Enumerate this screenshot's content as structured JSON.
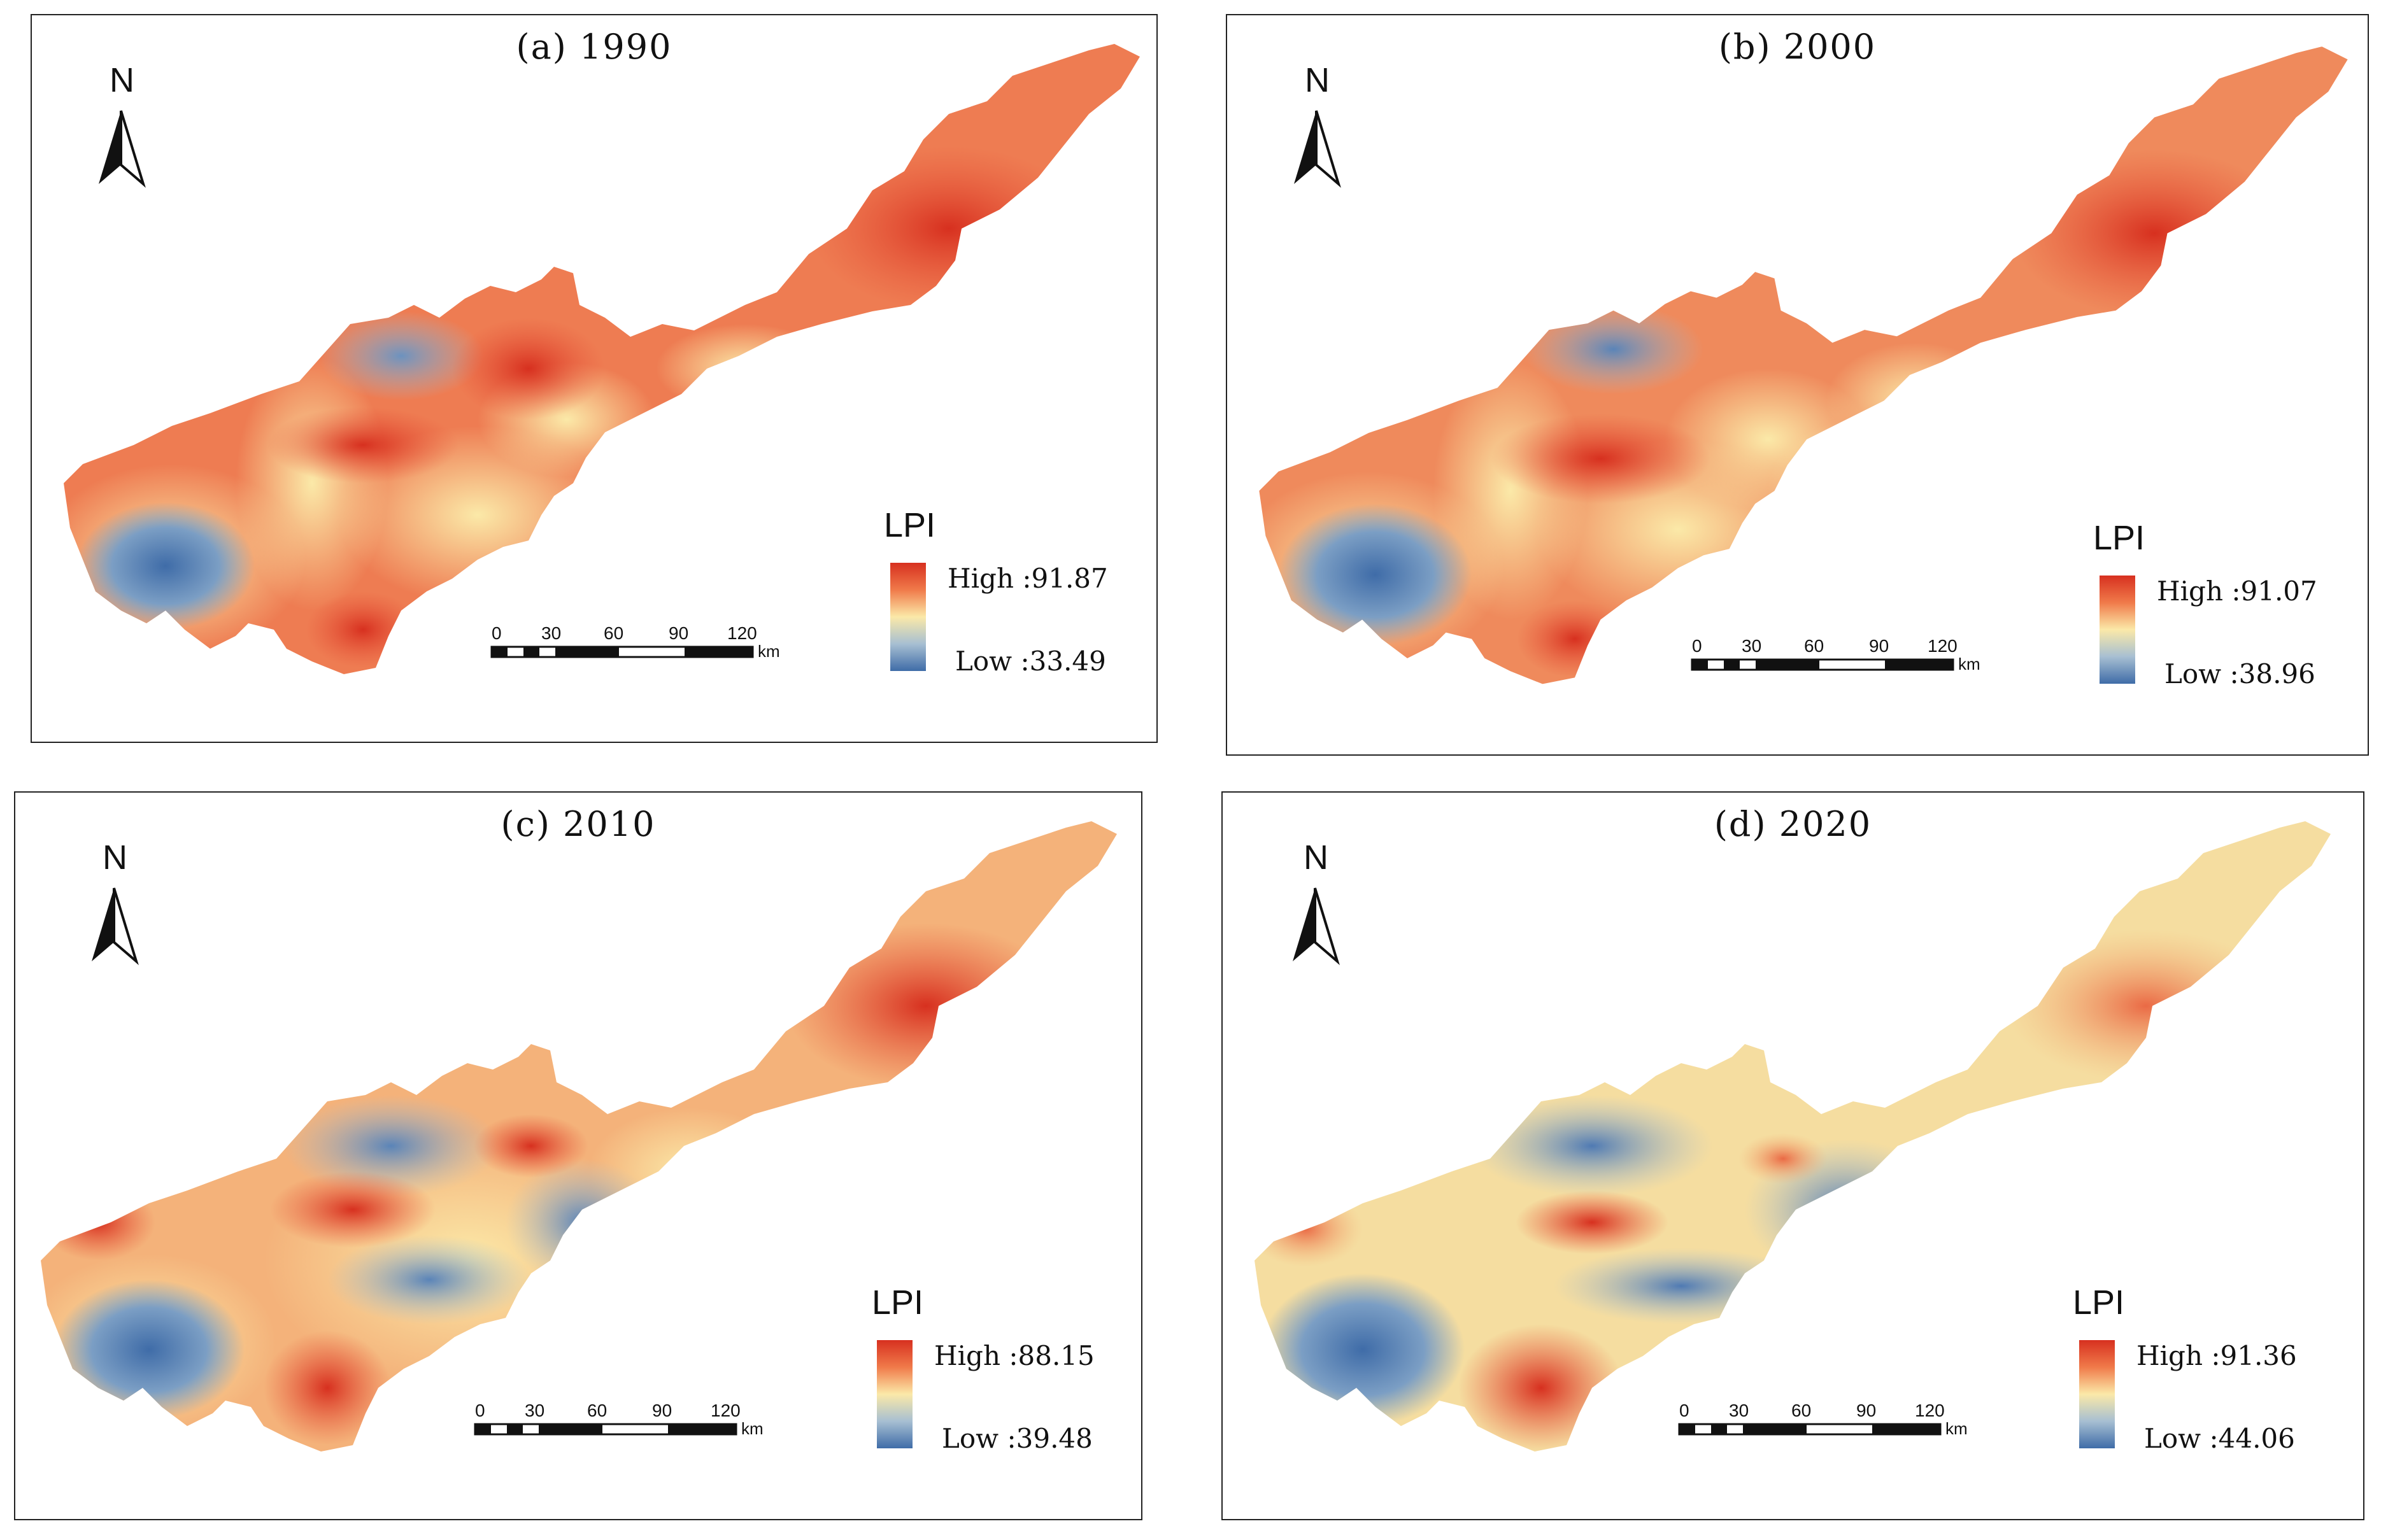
{
  "panels": [
    {
      "title": "(a) 1990",
      "legend_title": "LPI",
      "high_label": "High :91.87",
      "low_label": "Low :33.49"
    },
    {
      "title": "(b) 2000",
      "legend_title": "LPI",
      "high_label": "High :91.07",
      "low_label": "Low :38.96"
    },
    {
      "title": "(c) 2010",
      "legend_title": "LPI",
      "high_label": "High :88.15",
      "low_label": "Low :39.48"
    },
    {
      "title": "(d) 2020",
      "legend_title": "LPI",
      "high_label": "High :91.36",
      "low_label": "Low :44.06"
    }
  ],
  "north_label": "N",
  "scale": {
    "ticks": [
      "0",
      "30",
      "60",
      "90",
      "120"
    ],
    "unit": "km"
  },
  "colors": {
    "high": "#d7301f",
    "mid": "#fbe9a8",
    "low": "#3f6ca8"
  }
}
